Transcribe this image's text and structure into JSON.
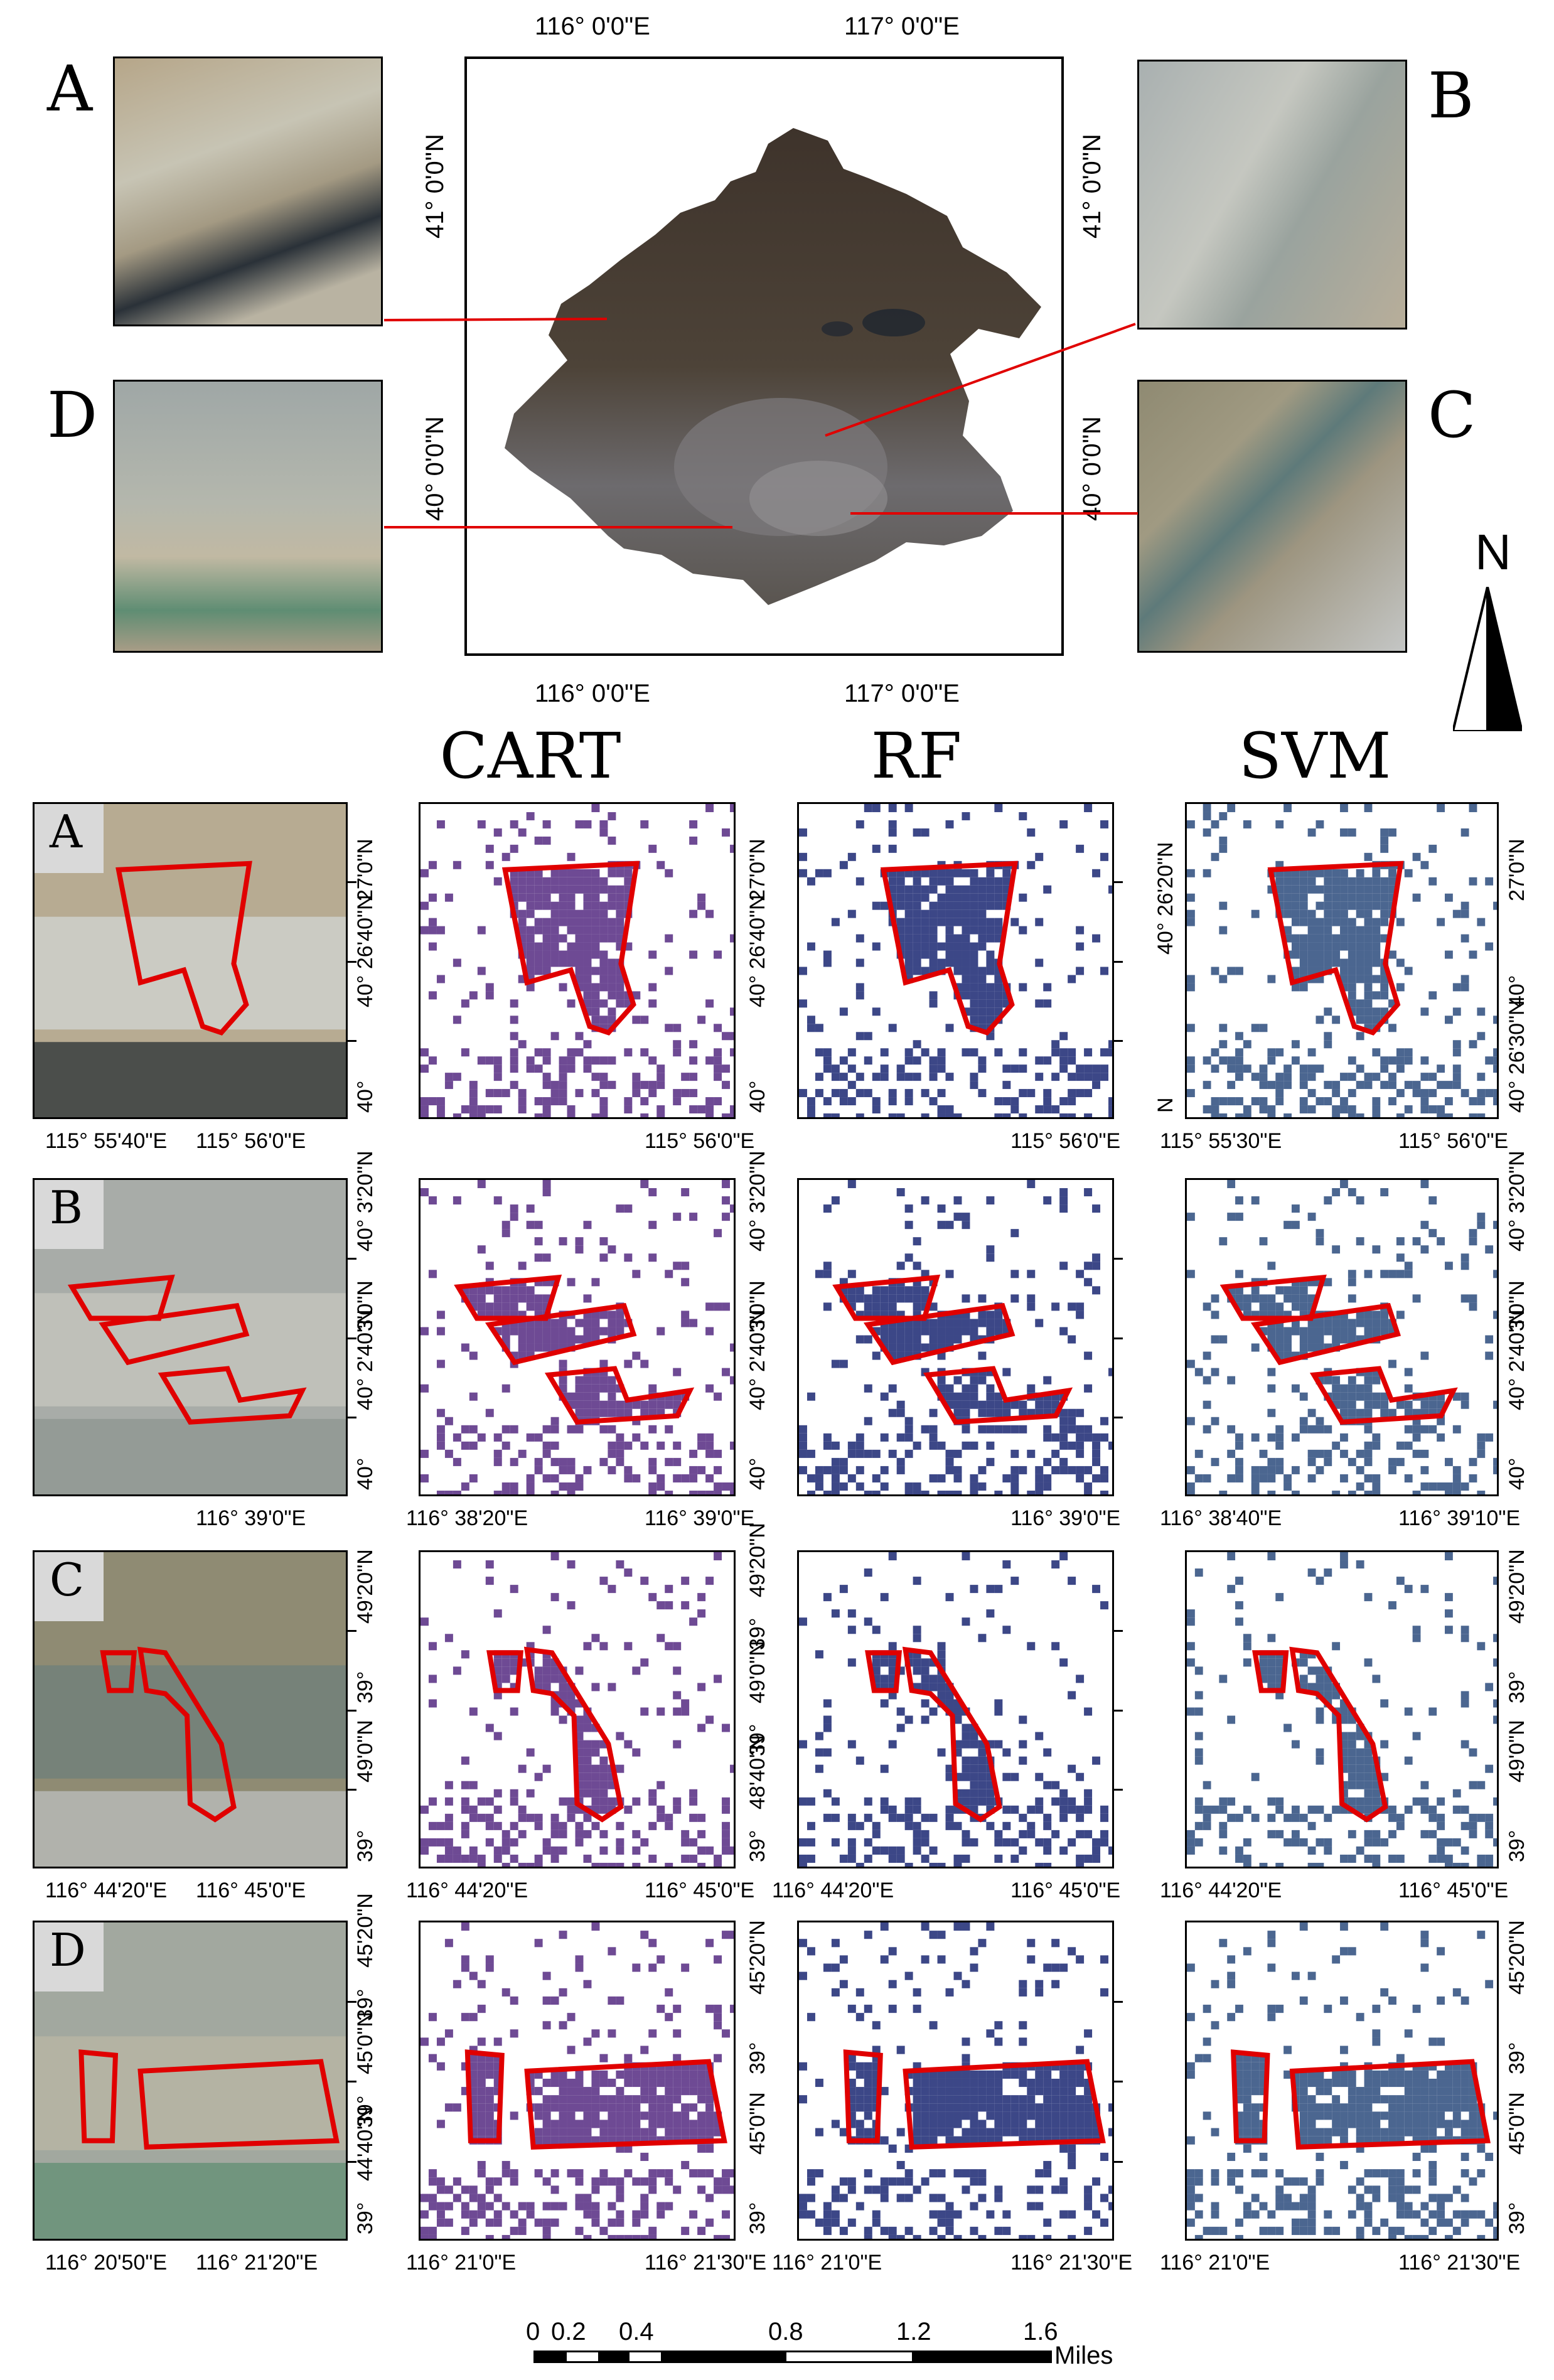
{
  "overview": {
    "top_lon_labels": [
      "116°  0'0\"E",
      "117°  0'0\"E"
    ],
    "bottom_lon_labels": [
      "116°  0'0\"E",
      "117°  0'0\"E"
    ],
    "left_lat_labels": [
      "41°  0'0\"N",
      "40°  0'0\"N"
    ],
    "right_lat_labels": [
      "41°  0'0\"N",
      "40°  0'0\"N"
    ],
    "site_letters": [
      "A",
      "B",
      "C",
      "D"
    ],
    "north_label": "N"
  },
  "columns": [
    "CART",
    "RF",
    "SVM"
  ],
  "rows": [
    {
      "id": "A",
      "image_bottom": [
        "115°  55'40\"E",
        "115°  56'0\"E"
      ],
      "image_right": [
        "27'0\"N",
        "40°  26'40\"N",
        "40°"
      ],
      "cart_bottom": [
        "115°  56'0\"E"
      ],
      "rf_left": [
        "27'0\"N",
        "40°  26'40\"N",
        "40°"
      ],
      "rf_bottom": [
        "115°  56'0\"E"
      ],
      "svm_left": [
        "40°  26'20\"N",
        "N"
      ],
      "svm_bottom": [
        "115°  55'30\"E",
        "115°  56'0\"E"
      ],
      "svm_right": [
        "27'0\"N",
        "40°",
        "40°  26'30\"N"
      ]
    },
    {
      "id": "B",
      "image_bottom": [
        "116°  39'0\"E"
      ],
      "image_right": [
        "40°  3'20\"N",
        "3'0\"N",
        "40°  2'40\"N",
        "40°"
      ],
      "cart_bottom": [
        "116°  38'20\"E",
        "116°  39'0\"E"
      ],
      "rf_left": [
        "40°  3'20\"N",
        "3'0\"N",
        "40°  2'40\"N",
        "40°"
      ],
      "rf_bottom": [
        "116°  39'0\"E"
      ],
      "svm_bottom": [
        "116°  38'40\"E",
        "116°  39'10\"E"
      ],
      "svm_right": [
        "40°  3'20\"N",
        "3'0\"N",
        "40°  2'40\"N",
        "40°"
      ]
    },
    {
      "id": "C",
      "image_bottom": [
        "116°  44'20\"E",
        "116°  45'0\"E"
      ],
      "image_right": [
        "49'20\"N",
        "39°",
        "49'0\"N",
        "39°"
      ],
      "cart_bottom": [
        "116°  44'20\"E",
        "116°  45'0\"E"
      ],
      "rf_left": [
        "49'20\"N",
        "39°",
        "49'0\"N",
        "39°",
        "48'40\"N",
        "39°"
      ],
      "rf_bottom": [
        "116°  44'20\"E",
        "116°  45'0\"E"
      ],
      "svm_bottom": [
        "116°  44'20\"E",
        "116°  45'0\"E"
      ],
      "svm_right": [
        "49'20\"N",
        "39°",
        "49'0\"N",
        "39°"
      ]
    },
    {
      "id": "D",
      "image_bottom": [
        "116°  20'50\"E",
        "116°  21'20\"E"
      ],
      "image_right": [
        "45'20\"N",
        "39°",
        "45'0\"N",
        "39°",
        "44'40\"N",
        "39°"
      ],
      "cart_bottom": [
        "116°  21'0\"E",
        "116°  21'30\"E"
      ],
      "rf_left": [
        "45'20\"N",
        "39°",
        "45'0\"N",
        "39°"
      ],
      "rf_bottom": [
        "116°  21'0\"E",
        "116°  21'30\"E"
      ],
      "svm_bottom": [
        "116°  21'0\"E",
        "116°  21'30\"E"
      ],
      "svm_right": [
        "45'20\"N",
        "39°",
        "45'0\"N",
        "39°"
      ]
    }
  ],
  "scale": {
    "ticks": [
      "0",
      "0.2",
      "0.4",
      "0.8",
      "1.2",
      "1.6"
    ],
    "unit": "Miles"
  },
  "colors": {
    "cart": "#6e4a94",
    "rf": "#3c4787",
    "svm": "#4b6690",
    "outline": "#e00000"
  }
}
